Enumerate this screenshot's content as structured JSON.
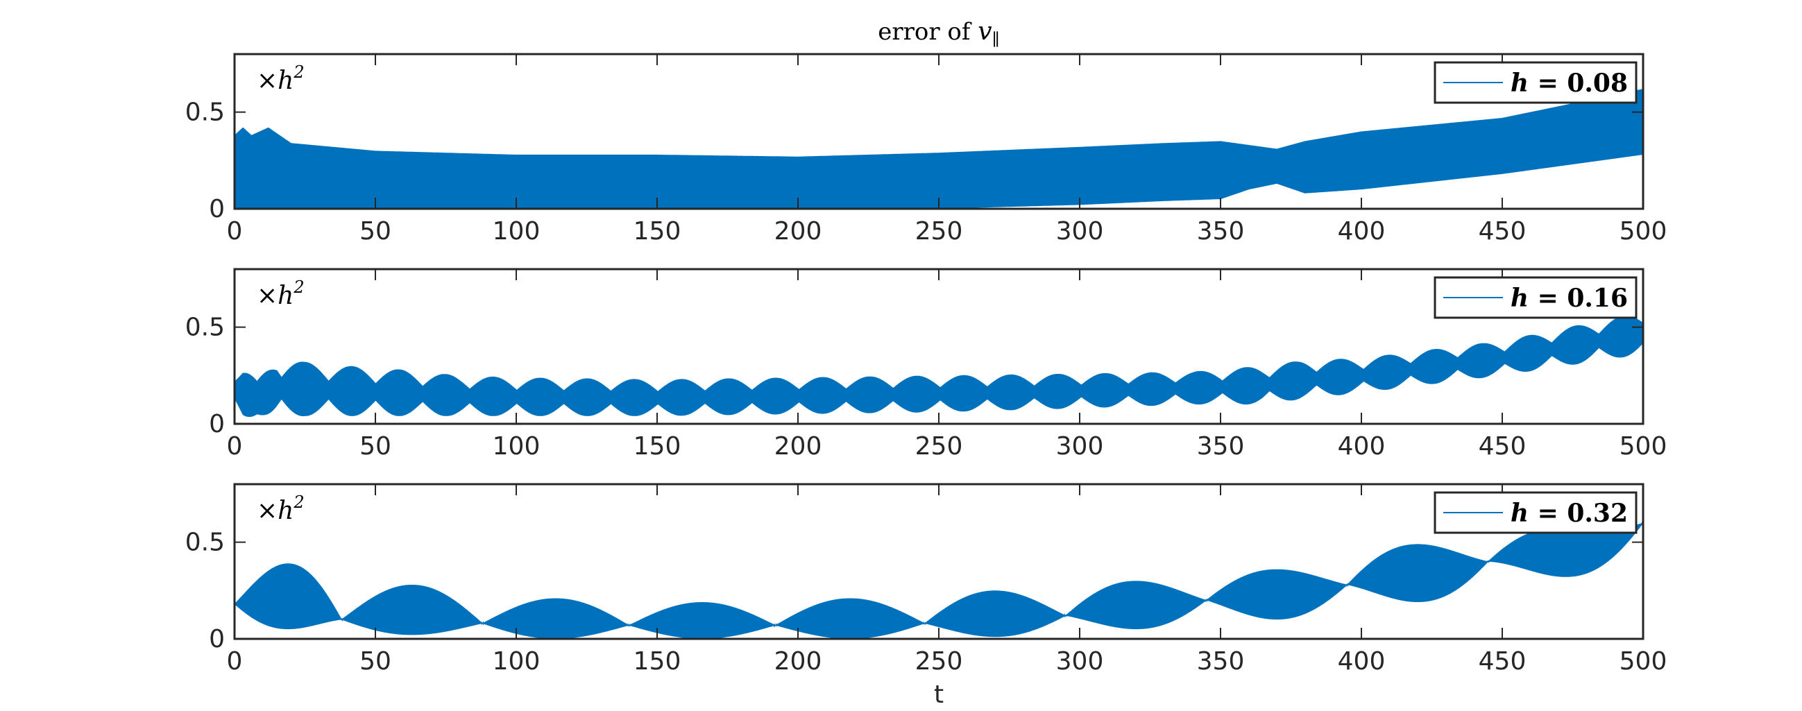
{
  "figure": {
    "title_main": "error of ",
    "title_var": "v",
    "title_sub": "∥",
    "xlabel": "t"
  },
  "chart_data": [
    {
      "type": "line",
      "title": "error of v∥",
      "xlabel": "",
      "ylabel": "",
      "xlim": [
        0,
        500
      ],
      "ylim": [
        0,
        0.8
      ],
      "xticks": [
        "0",
        "50",
        "100",
        "150",
        "200",
        "250",
        "300",
        "350",
        "400",
        "450",
        "500"
      ],
      "yticks": [
        "0",
        "0.5"
      ],
      "y_scale_note": "×h²",
      "y_scale_base": "×h",
      "y_scale_exp": "2",
      "legend_placement": "top-right",
      "legend_eq": "h = ",
      "legend_value": "0.08",
      "color": "#0072BD",
      "series": [
        {
          "name": "h = 0.08",
          "envelope_t": [
            0,
            3,
            6,
            12,
            20,
            50,
            100,
            150,
            200,
            250,
            300,
            330,
            350,
            360,
            370,
            380,
            400,
            450,
            500
          ],
          "upper": [
            0.38,
            0.42,
            0.38,
            0.42,
            0.34,
            0.3,
            0.28,
            0.28,
            0.27,
            0.29,
            0.32,
            0.34,
            0.35,
            0.33,
            0.31,
            0.35,
            0.4,
            0.47,
            0.62
          ],
          "lower": [
            0.0,
            0.0,
            0.0,
            0.0,
            0.0,
            0.0,
            0.0,
            0.0,
            0.0,
            0.0,
            0.02,
            0.04,
            0.05,
            0.1,
            0.13,
            0.08,
            0.1,
            0.18,
            0.28
          ]
        }
      ]
    },
    {
      "type": "line",
      "xlabel": "",
      "ylabel": "",
      "xlim": [
        0,
        500
      ],
      "ylim": [
        0,
        0.8
      ],
      "xticks": [
        "0",
        "50",
        "100",
        "150",
        "200",
        "250",
        "300",
        "350",
        "400",
        "450",
        "500"
      ],
      "yticks": [
        "0",
        "0.5"
      ],
      "y_scale_note": "×h²",
      "y_scale_base": "×h",
      "y_scale_exp": "2",
      "legend_placement": "top-right",
      "legend_eq": "h = ",
      "legend_value": "0.16",
      "color": "#0072BD",
      "series": [
        {
          "name": "h = 0.16",
          "envelope_t": [
            0,
            3,
            8,
            15,
            25,
            40,
            60,
            80,
            100,
            150,
            200,
            250,
            300,
            340,
            365,
            380,
            400,
            450,
            500
          ],
          "upper": [
            0.3,
            0.31,
            0.22,
            0.35,
            0.32,
            0.3,
            0.28,
            0.25,
            0.24,
            0.23,
            0.24,
            0.25,
            0.26,
            0.27,
            0.3,
            0.33,
            0.34,
            0.43,
            0.58
          ],
          "lower": [
            0.05,
            0.0,
            0.05,
            0.02,
            0.04,
            0.04,
            0.04,
            0.04,
            0.04,
            0.04,
            0.05,
            0.06,
            0.08,
            0.1,
            0.1,
            0.13,
            0.16,
            0.25,
            0.36
          ],
          "beat_period": 16.7
        }
      ]
    },
    {
      "type": "line",
      "xlabel": "t",
      "ylabel": "",
      "xlim": [
        0,
        500
      ],
      "ylim": [
        0,
        0.8
      ],
      "xticks": [
        "0",
        "50",
        "100",
        "150",
        "200",
        "250",
        "300",
        "350",
        "400",
        "450",
        "500"
      ],
      "yticks": [
        "0",
        "0.5"
      ],
      "y_scale_note": "×h²",
      "y_scale_base": "×h",
      "y_scale_exp": "2",
      "legend_placement": "top-right",
      "legend_eq": "h = ",
      "legend_value": "0.32",
      "color": "#0072BD",
      "series": [
        {
          "name": "h = 0.32",
          "beat_t_nodes": [
            0,
            38,
            88,
            140,
            192,
            245,
            295,
            345,
            395,
            445,
            500
          ],
          "node_level": [
            0.18,
            0.1,
            0.08,
            0.07,
            0.07,
            0.08,
            0.12,
            0.2,
            0.28,
            0.4,
            0.6
          ],
          "peak_t": [
            12,
            62,
            115,
            168,
            220,
            272,
            322,
            372,
            425,
            475
          ],
          "peak_upper": [
            0.39,
            0.28,
            0.21,
            0.19,
            0.21,
            0.25,
            0.3,
            0.36,
            0.49,
            0.58
          ],
          "peak_lower": [
            0.05,
            0.02,
            0.0,
            0.0,
            0.0,
            0.01,
            0.05,
            0.1,
            0.19,
            0.32
          ]
        }
      ]
    }
  ]
}
